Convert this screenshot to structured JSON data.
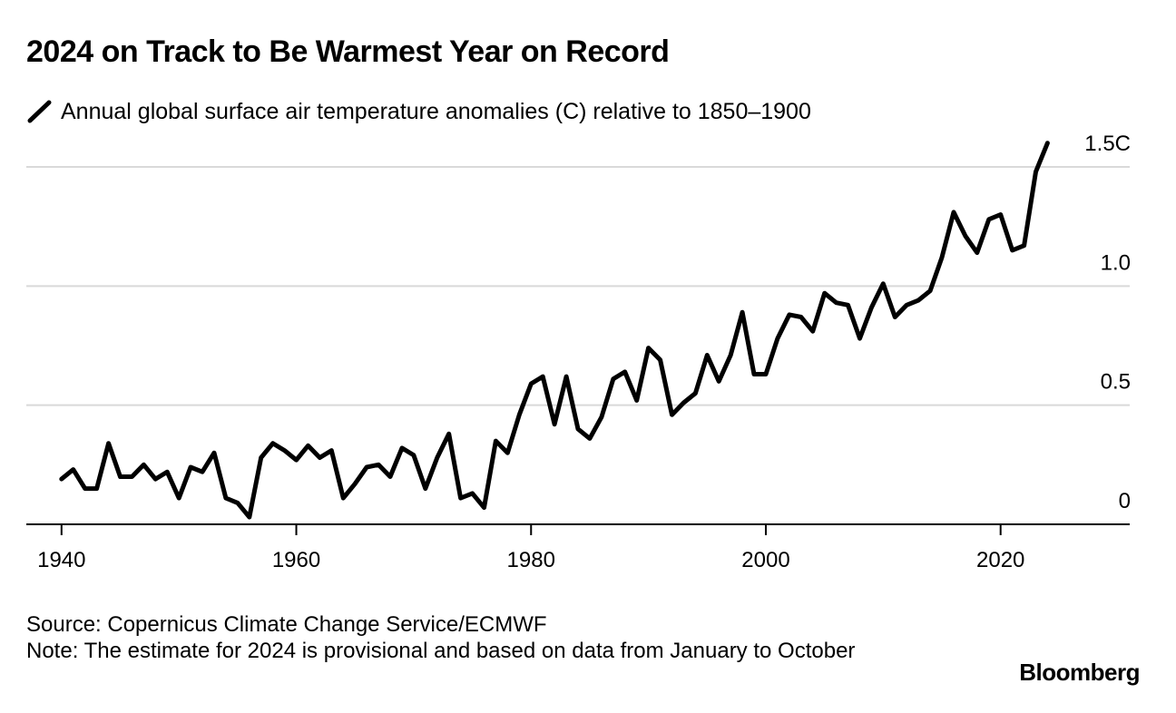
{
  "title": "2024 on Track to Be Warmest Year on Record",
  "footer": {
    "source": "Source: Copernicus Climate Change Service/ECMWF",
    "note": "Note: The estimate for 2024 is provisional and based on data from January to October"
  },
  "brand": "Bloomberg",
  "colors": {
    "line": "#000000",
    "grid": "#d9d9d9",
    "axis": "#000000"
  },
  "chart_data": {
    "type": "line",
    "title": "2024 on Track to Be Warmest Year on Record",
    "xlabel": "",
    "ylabel": "",
    "xlim": [
      1937,
      2031
    ],
    "ylim": [
      0,
      1.5
    ],
    "x_ticks": [
      1940,
      1960,
      1980,
      2000,
      2020
    ],
    "x_tick_labels": [
      "1940",
      "1960",
      "1980",
      "2000",
      "2020"
    ],
    "y_ticks": [
      0,
      0.5,
      1.0,
      1.5
    ],
    "y_tick_labels": [
      "0",
      "0.5",
      "1.0",
      "1.5C"
    ],
    "grid": true,
    "legend_position": "top-left",
    "series": [
      {
        "name": "Annual global surface air temperature anomalies (C) relative to 1850–1900",
        "x": [
          1940,
          1941,
          1942,
          1943,
          1944,
          1945,
          1946,
          1947,
          1948,
          1949,
          1950,
          1951,
          1952,
          1953,
          1954,
          1955,
          1956,
          1957,
          1958,
          1959,
          1960,
          1961,
          1962,
          1963,
          1964,
          1965,
          1966,
          1967,
          1968,
          1969,
          1970,
          1971,
          1972,
          1973,
          1974,
          1975,
          1976,
          1977,
          1978,
          1979,
          1980,
          1981,
          1982,
          1983,
          1984,
          1985,
          1986,
          1987,
          1988,
          1989,
          1990,
          1991,
          1992,
          1993,
          1994,
          1995,
          1996,
          1997,
          1998,
          1999,
          2000,
          2001,
          2002,
          2003,
          2004,
          2005,
          2006,
          2007,
          2008,
          2009,
          2010,
          2011,
          2012,
          2013,
          2014,
          2015,
          2016,
          2017,
          2018,
          2019,
          2020,
          2021,
          2022,
          2023,
          2024
        ],
        "values": [
          0.19,
          0.23,
          0.15,
          0.15,
          0.34,
          0.2,
          0.2,
          0.25,
          0.19,
          0.22,
          0.11,
          0.24,
          0.22,
          0.3,
          0.11,
          0.09,
          0.03,
          0.28,
          0.34,
          0.31,
          0.27,
          0.33,
          0.28,
          0.31,
          0.11,
          0.17,
          0.24,
          0.25,
          0.2,
          0.32,
          0.29,
          0.15,
          0.28,
          0.38,
          0.11,
          0.13,
          0.07,
          0.35,
          0.3,
          0.46,
          0.59,
          0.62,
          0.42,
          0.62,
          0.4,
          0.36,
          0.45,
          0.61,
          0.64,
          0.52,
          0.74,
          0.69,
          0.46,
          0.51,
          0.55,
          0.71,
          0.6,
          0.71,
          0.89,
          0.63,
          0.63,
          0.78,
          0.88,
          0.87,
          0.81,
          0.97,
          0.93,
          0.92,
          0.78,
          0.91,
          1.01,
          0.87,
          0.92,
          0.94,
          0.98,
          1.12,
          1.31,
          1.21,
          1.14,
          1.28,
          1.3,
          1.15,
          1.17,
          1.48,
          1.6
        ]
      }
    ]
  }
}
